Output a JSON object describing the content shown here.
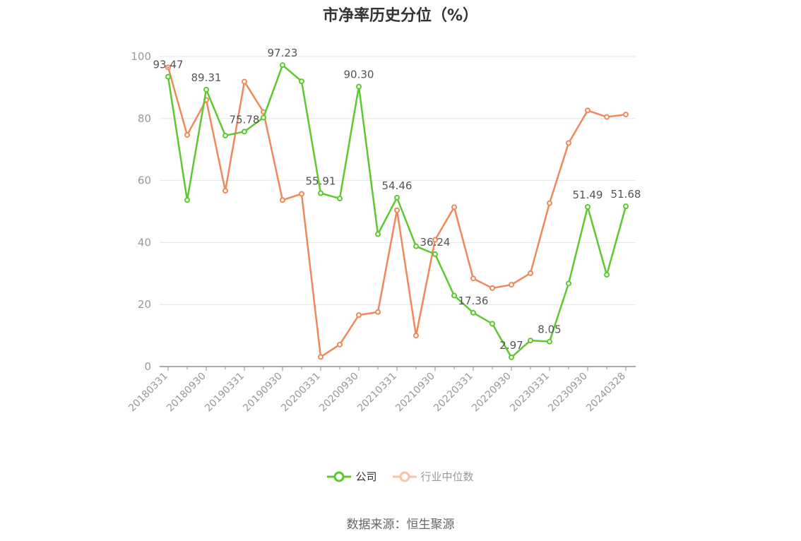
{
  "chart_data": {
    "type": "line",
    "title": "市净率历史分位（%）",
    "ylim": [
      0,
      100
    ],
    "yticks": [
      0,
      20,
      40,
      60,
      80,
      100
    ],
    "grid": true,
    "legend_position": "bottom",
    "x": [
      "20180331",
      "20180630",
      "20180930",
      "20181231",
      "20190331",
      "20190630",
      "20190930",
      "20191231",
      "20200331",
      "20200630",
      "20200930",
      "20201231",
      "20210331",
      "20210630",
      "20210930",
      "20211231",
      "20220331",
      "20220630",
      "20220930",
      "20221231",
      "20230331",
      "20230630",
      "20230930",
      "20231231",
      "20240328"
    ],
    "x_tick_labels": [
      "20180331",
      "20180930",
      "20190331",
      "20190930",
      "20200331",
      "20200930",
      "20210331",
      "20210930",
      "20220331",
      "20220930",
      "20230331",
      "20230930",
      "20240328"
    ],
    "series": [
      {
        "name": "公司",
        "color": "#5cc92f",
        "values": [
          93.47,
          53.7,
          89.31,
          74.5,
          75.78,
          80.3,
          97.23,
          92.0,
          55.91,
          54.2,
          90.3,
          42.7,
          54.46,
          38.8,
          36.24,
          22.9,
          17.36,
          13.8,
          2.97,
          8.4,
          8.05,
          26.8,
          51.49,
          29.6,
          51.68
        ],
        "labels": {
          "0": "93.47",
          "2": "89.31",
          "4": "75.78",
          "6": "97.23",
          "8": "55.91",
          "10": "90.30",
          "12": "54.46",
          "14": "36.24",
          "16": "17.36",
          "18": "2.97",
          "20": "8.05",
          "22": "51.49",
          "24": "51.68"
        }
      },
      {
        "name": "行业中位数",
        "color": "#f0885a",
        "values": [
          96.5,
          74.7,
          86.0,
          56.7,
          91.9,
          82.1,
          53.7,
          55.7,
          3.1,
          7.1,
          16.6,
          17.6,
          50.4,
          10.0,
          40.9,
          51.4,
          28.4,
          25.3,
          26.4,
          30.1,
          52.7,
          72.1,
          82.6,
          80.5,
          81.3
        ]
      }
    ]
  },
  "source_note": "数据来源：恒生聚源"
}
